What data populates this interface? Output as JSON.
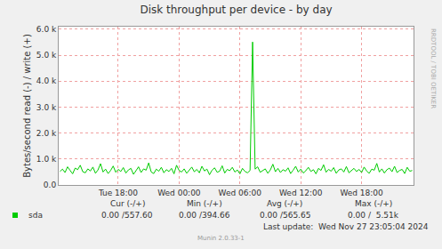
{
  "chart_data": {
    "type": "line",
    "title": "Disk throughput per device - by day",
    "y_label": "Bytes/second read (-) / write (+)",
    "side_text": "RRDTOOL / TOBI OETIKER",
    "footer": "Munin 2.0.33-1",
    "last_update": "Last update:  Wed Nov 27 23:05:04 2024",
    "grid": true,
    "categories": [
      null,
      null,
      null,
      null,
      null,
      null,
      null,
      null,
      null,
      null,
      null,
      null,
      null,
      null,
      null,
      null,
      null,
      null,
      null,
      null,
      null,
      null,
      null,
      "Tue 18:00",
      null,
      null,
      null,
      null,
      null,
      null,
      null,
      null,
      null,
      null,
      null,
      null,
      null,
      null,
      null,
      null,
      null,
      null,
      null,
      null,
      null,
      null,
      null,
      "Wed 00:00",
      null,
      null,
      null,
      null,
      null,
      null,
      null,
      null,
      null,
      null,
      null,
      null,
      null,
      null,
      null,
      null,
      null,
      null,
      null,
      null,
      null,
      null,
      null,
      "Wed 06:00",
      null,
      null,
      null,
      null,
      null,
      null,
      null,
      null,
      null,
      null,
      null,
      null,
      null,
      null,
      null,
      null,
      null,
      null,
      null,
      null,
      null,
      null,
      null,
      "Wed 12:00",
      null,
      null,
      null,
      null,
      null,
      null,
      null,
      null,
      null,
      null,
      null,
      null,
      null,
      null,
      null,
      null,
      null,
      null,
      null,
      null,
      null,
      null,
      null,
      "Wed 18:00",
      null,
      null,
      null,
      null,
      null,
      null,
      null,
      null,
      null,
      null,
      null,
      null,
      null,
      null,
      null,
      null,
      null,
      null,
      null,
      null
    ],
    "series": [
      {
        "name": "sda",
        "color": "#00cc00",
        "values": [
          520,
          610,
          480,
          700,
          560,
          430,
          650,
          590,
          760,
          510,
          470,
          620,
          540,
          690,
          450,
          580,
          820,
          500,
          610,
          440,
          560,
          730,
          490,
          600,
          520,
          670,
          460,
          580,
          640,
          410,
          550,
          700,
          480,
          620,
          570,
          850,
          500,
          440,
          610,
          530,
          680,
          470,
          590,
          520,
          640,
          430,
          760,
          560,
          500,
          620,
          450,
          580,
          690,
          510,
          600,
          470,
          720,
          540,
          610,
          395,
          570,
          660,
          490,
          530,
          740,
          460,
          600,
          550,
          680,
          500,
          580,
          430,
          640,
          520,
          470,
          560,
          5510,
          610,
          700,
          490,
          550,
          620,
          450,
          580,
          800,
          510,
          640,
          480,
          590,
          530,
          660,
          440,
          570,
          720,
          500,
          610,
          460,
          550,
          680,
          520,
          590,
          430,
          640,
          560,
          780,
          490,
          600,
          530,
          670,
          450,
          580,
          620,
          500,
          710,
          470,
          560,
          640,
          520,
          600,
          480,
          690,
          540,
          450,
          610,
          570,
          830,
          500,
          620,
          460,
          590,
          650,
          510,
          720,
          480,
          560,
          600,
          440,
          680,
          530,
          557.6
        ]
      }
    ],
    "ylim": [
      0,
      6100
    ],
    "yticks": [
      {
        "value": 0,
        "label": "0.0"
      },
      {
        "value": 1000,
        "label": "1.0 k"
      },
      {
        "value": 2000,
        "label": "2.0 k"
      },
      {
        "value": 3000,
        "label": "3.0 k"
      },
      {
        "value": 4000,
        "label": "4.0 k"
      },
      {
        "value": 5000,
        "label": "5.0 k"
      },
      {
        "value": 6000,
        "label": "6.0 k"
      }
    ],
    "stats": {
      "headers": [
        "Cur (-/+)",
        "Min (-/+)",
        "Avg (-/+)",
        "Max (-/+)"
      ],
      "rows": [
        {
          "name": "sda",
          "values": [
            "0.00 /557.60",
            "0.00 /394.66",
            "0.00 /565.65",
            "0.00 /  5.51k"
          ]
        }
      ]
    }
  }
}
